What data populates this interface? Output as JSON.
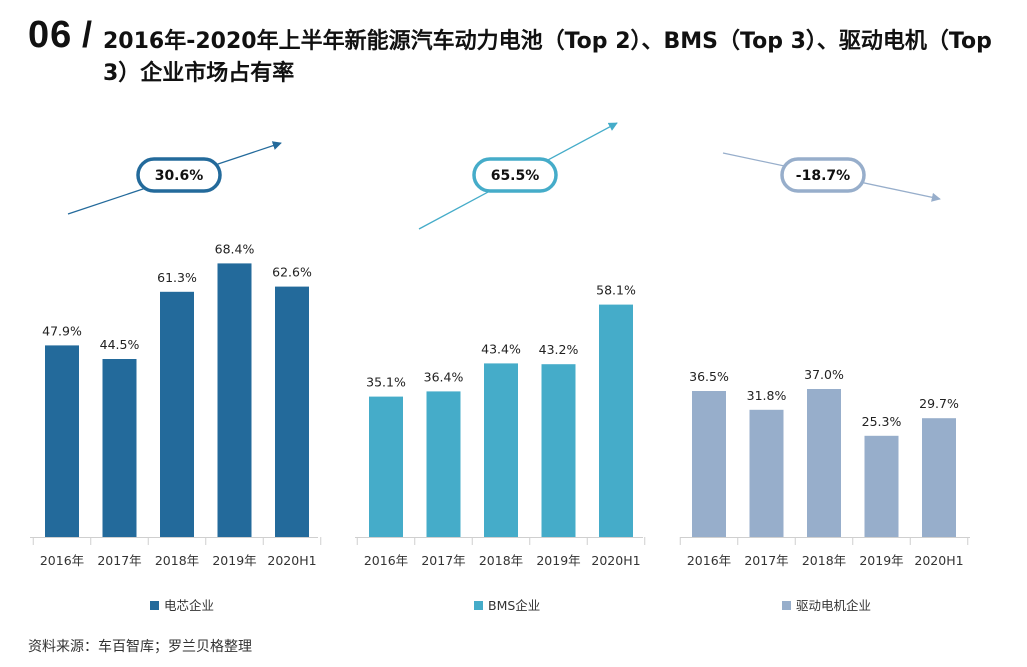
{
  "header": {
    "number": "06",
    "slash": "/",
    "title": "2016年-2020年上半年新能源汽车动力电池（Top 2）、BMS（Top 3）、驱动电机（Top 3）企业市场占有率"
  },
  "source": "资料来源：车百智库；罗兰贝格整理",
  "colors": {
    "battery": "#236a9b",
    "bms": "#45acc9",
    "motor": "#97aecb"
  },
  "chart_data": [
    {
      "type": "bar",
      "categories": [
        "2016年",
        "2017年",
        "2018年",
        "2019年",
        "2020H1"
      ],
      "series": [
        {
          "name": "电芯企业",
          "values": [
            47.9,
            44.5,
            61.3,
            68.4,
            62.6
          ]
        }
      ],
      "data_labels": [
        "47.9%",
        "44.5%",
        "61.3%",
        "68.4%",
        "62.6%"
      ],
      "change_label": "30.6%",
      "trend": "up",
      "ylim": [
        0,
        80
      ],
      "legend_position": "bottom",
      "grid": false
    },
    {
      "type": "bar",
      "categories": [
        "2016年",
        "2017年",
        "2018年",
        "2019年",
        "2020H1"
      ],
      "series": [
        {
          "name": "BMS企业",
          "values": [
            35.1,
            36.4,
            43.4,
            43.2,
            58.1
          ]
        }
      ],
      "data_labels": [
        "35.1%",
        "36.4%",
        "43.4%",
        "43.2%",
        "58.1%"
      ],
      "change_label": "65.5%",
      "trend": "up",
      "ylim": [
        0,
        80
      ],
      "legend_position": "bottom",
      "grid": false
    },
    {
      "type": "bar",
      "categories": [
        "2016年",
        "2017年",
        "2018年",
        "2019年",
        "2020H1"
      ],
      "series": [
        {
          "name": "驱动电机企业",
          "values": [
            36.5,
            31.8,
            37.0,
            25.3,
            29.7
          ]
        }
      ],
      "data_labels": [
        "36.5%",
        "31.8%",
        "37.0%",
        "25.3%",
        "29.7%"
      ],
      "change_label": "-18.7%",
      "trend": "down",
      "ylim": [
        0,
        80
      ],
      "legend_position": "bottom",
      "grid": false
    }
  ]
}
